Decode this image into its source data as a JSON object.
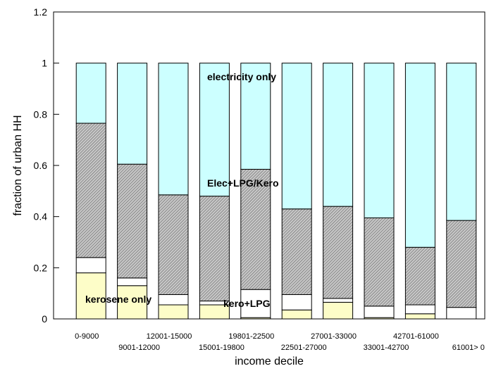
{
  "chart_data": {
    "type": "bar",
    "stacked": true,
    "categories": [
      "0-9000",
      "9001-12000",
      "12001-15000",
      "15001-19800",
      "19801-22500",
      "22501-27000",
      "27001-33000",
      "33001-42700",
      "42701-61000",
      "61001> 0"
    ],
    "series": [
      {
        "name": "kerosene only",
        "values": [
          0.18,
          0.13,
          0.055,
          0.055,
          0.005,
          0.035,
          0.065,
          0.005,
          0.02,
          0.0
        ],
        "color": "#fdfdc8"
      },
      {
        "name": "kero+LPG",
        "values": [
          0.06,
          0.03,
          0.04,
          0.015,
          0.11,
          0.06,
          0.015,
          0.045,
          0.035,
          0.045
        ],
        "color": "#ffffff"
      },
      {
        "name": "Elec+LPG/Kero",
        "values": [
          0.525,
          0.445,
          0.39,
          0.41,
          0.47,
          0.335,
          0.36,
          0.345,
          0.225,
          0.34
        ],
        "color": "#a8a8a8"
      },
      {
        "name": "electricity only",
        "values": [
          0.235,
          0.395,
          0.515,
          0.52,
          0.415,
          0.57,
          0.56,
          0.605,
          0.72,
          0.615
        ],
        "color": "#ccffff"
      }
    ],
    "xlabel": "income decile",
    "ylabel": "fraction of urban HH",
    "ylim": [
      0,
      1.2
    ],
    "yticks": [
      "0",
      "0.2",
      "0.4",
      "0.6",
      "0.8",
      "1",
      "1.2"
    ],
    "grid": false,
    "annotations": {
      "electricity": "electricity only",
      "elec_lpg_kero": "Elec+LPG/Kero",
      "kerosene": "kerosene only",
      "kero_lpg": "kero+LPG"
    }
  }
}
